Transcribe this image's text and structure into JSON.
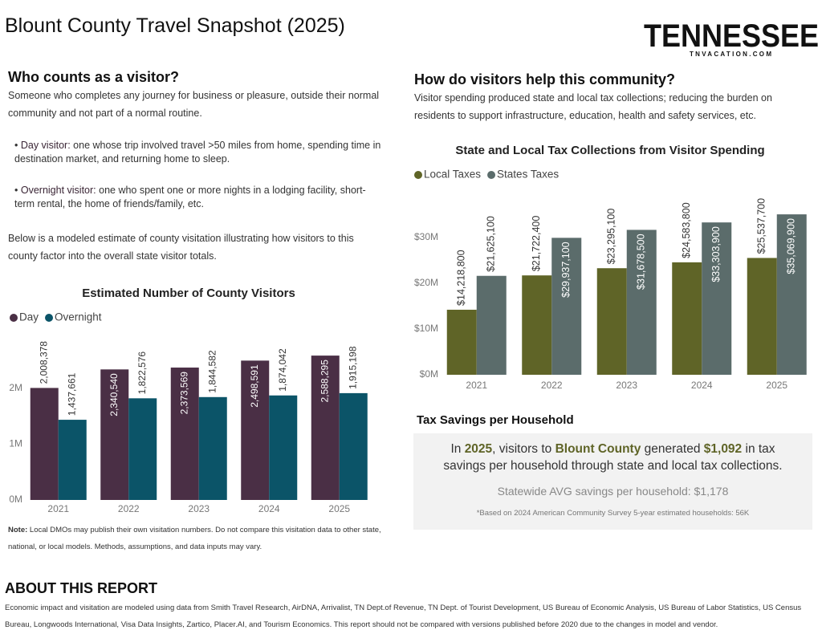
{
  "header": {
    "title": "Blount County Travel Snapshot (2025)",
    "logo": "TENNESSEE",
    "logo_sub": "TNVACATION.COM"
  },
  "visitor_section": {
    "heading": "Who counts as a visitor?",
    "intro": "Someone who completes any journey for business or pleasure, outside their normal community and not part of a normal routine.",
    "bullets": [
      {
        "term": "Day visitor:",
        "text": " one whose trip involved travel >50 miles from home, spending time in destination market, and returning home to sleep."
      },
      {
        "term": "Overnight visitor:",
        "text": " one who spent one or more nights in a lodging facility, short-term rental, the home of friends/family, etc."
      }
    ],
    "outro": "Below is a modeled estimate of county visitation illustrating how visitors to this county factor into the overall state visitor totals."
  },
  "community_section": {
    "heading": "How do visitors help this community?",
    "text": "Visitor spending produced state and local tax collections; reducing the burden on residents to support infrastructure, education, health and safety services, etc."
  },
  "chart_data": [
    {
      "type": "bar",
      "title": "Estimated Number of County Visitors",
      "categories": [
        "2021",
        "2022",
        "2023",
        "2024",
        "2025"
      ],
      "series": [
        {
          "name": "Day",
          "color": "#4a2f45",
          "values": [
            2008378,
            2340540,
            2373569,
            2498591,
            2588295
          ],
          "value_labels": [
            "2,008,378",
            "2,340,540",
            "2,373,569",
            "2,498,591",
            "2,588,295"
          ]
        },
        {
          "name": "Overnight",
          "color": "#0b5468",
          "values": [
            1437661,
            1822576,
            1844582,
            1874042,
            1915198
          ],
          "value_labels": [
            "1,437,661",
            "1,822,576",
            "1,844,582",
            "1,874,042",
            "1,915,198"
          ]
        }
      ],
      "ylim": [
        0,
        3000000
      ],
      "yticks": [
        {
          "value": 0,
          "label": "0M"
        },
        {
          "value": 1000000,
          "label": "1M"
        },
        {
          "value": 2000000,
          "label": "2M"
        }
      ],
      "grid": false,
      "legend": "top-left"
    },
    {
      "type": "bar",
      "title": "State and Local Tax Collections from Visitor Spending",
      "categories": [
        "2021",
        "2022",
        "2023",
        "2024",
        "2025"
      ],
      "series": [
        {
          "name": "Local Taxes",
          "color": "#5f6427",
          "values": [
            14218800,
            21722400,
            23295100,
            24583800,
            25537700
          ],
          "value_labels": [
            "$14,218,800",
            "$21,722,400",
            "$23,295,100",
            "$24,583,800",
            "$25,537,700"
          ]
        },
        {
          "name": "States Taxes",
          "color": "#5b6c6b",
          "values": [
            21625100,
            29937100,
            31678500,
            33303900,
            35069900
          ],
          "value_labels": [
            "$21,625,100",
            "$29,937,100",
            "$31,678,500",
            "$33,303,900",
            "$35,069,900"
          ]
        }
      ],
      "ylim": [
        0,
        40000000
      ],
      "yticks": [
        {
          "value": 0,
          "label": "$0M"
        },
        {
          "value": 10000000,
          "label": "$10M"
        },
        {
          "value": 20000000,
          "label": "$20M"
        },
        {
          "value": 30000000,
          "label": "$30M"
        }
      ],
      "grid": false,
      "legend": "top-left"
    }
  ],
  "note": {
    "label": "Note:",
    "text": " Local DMOs may publish their own visitation numbers. Do not compare this visitation data to other state, national, or local models. Methods, assumptions, and data inputs may vary."
  },
  "tax_savings": {
    "heading": "Tax Savings per Household",
    "statement": [
      "In ",
      "2025",
      ", visitors to ",
      "Blount County",
      " generated ",
      "$1,092",
      " in tax savings per household through state and local tax collections."
    ],
    "statewide": "Statewide AVG savings per household: $1,178",
    "footnote": "*Based on 2024 American Community Survey 5-year estimated households: 56K"
  },
  "about": {
    "heading": "ABOUT THIS REPORT",
    "text": "Economic impact and visitation are modeled using data from Smith Travel Research, AirDNA, Arrivalist, TN Dept.of Revenue, TN Dept. of Tourist Development, US Bureau of Economic Analysis, US Bureau of Labor Statistics, US Census Bureau, Longwoods International, Visa Data Insights, Zartico, Placer.AI, and Tourism Economics. This report should not be compared with versions published before 2020 due to the changes in model and vendor."
  }
}
